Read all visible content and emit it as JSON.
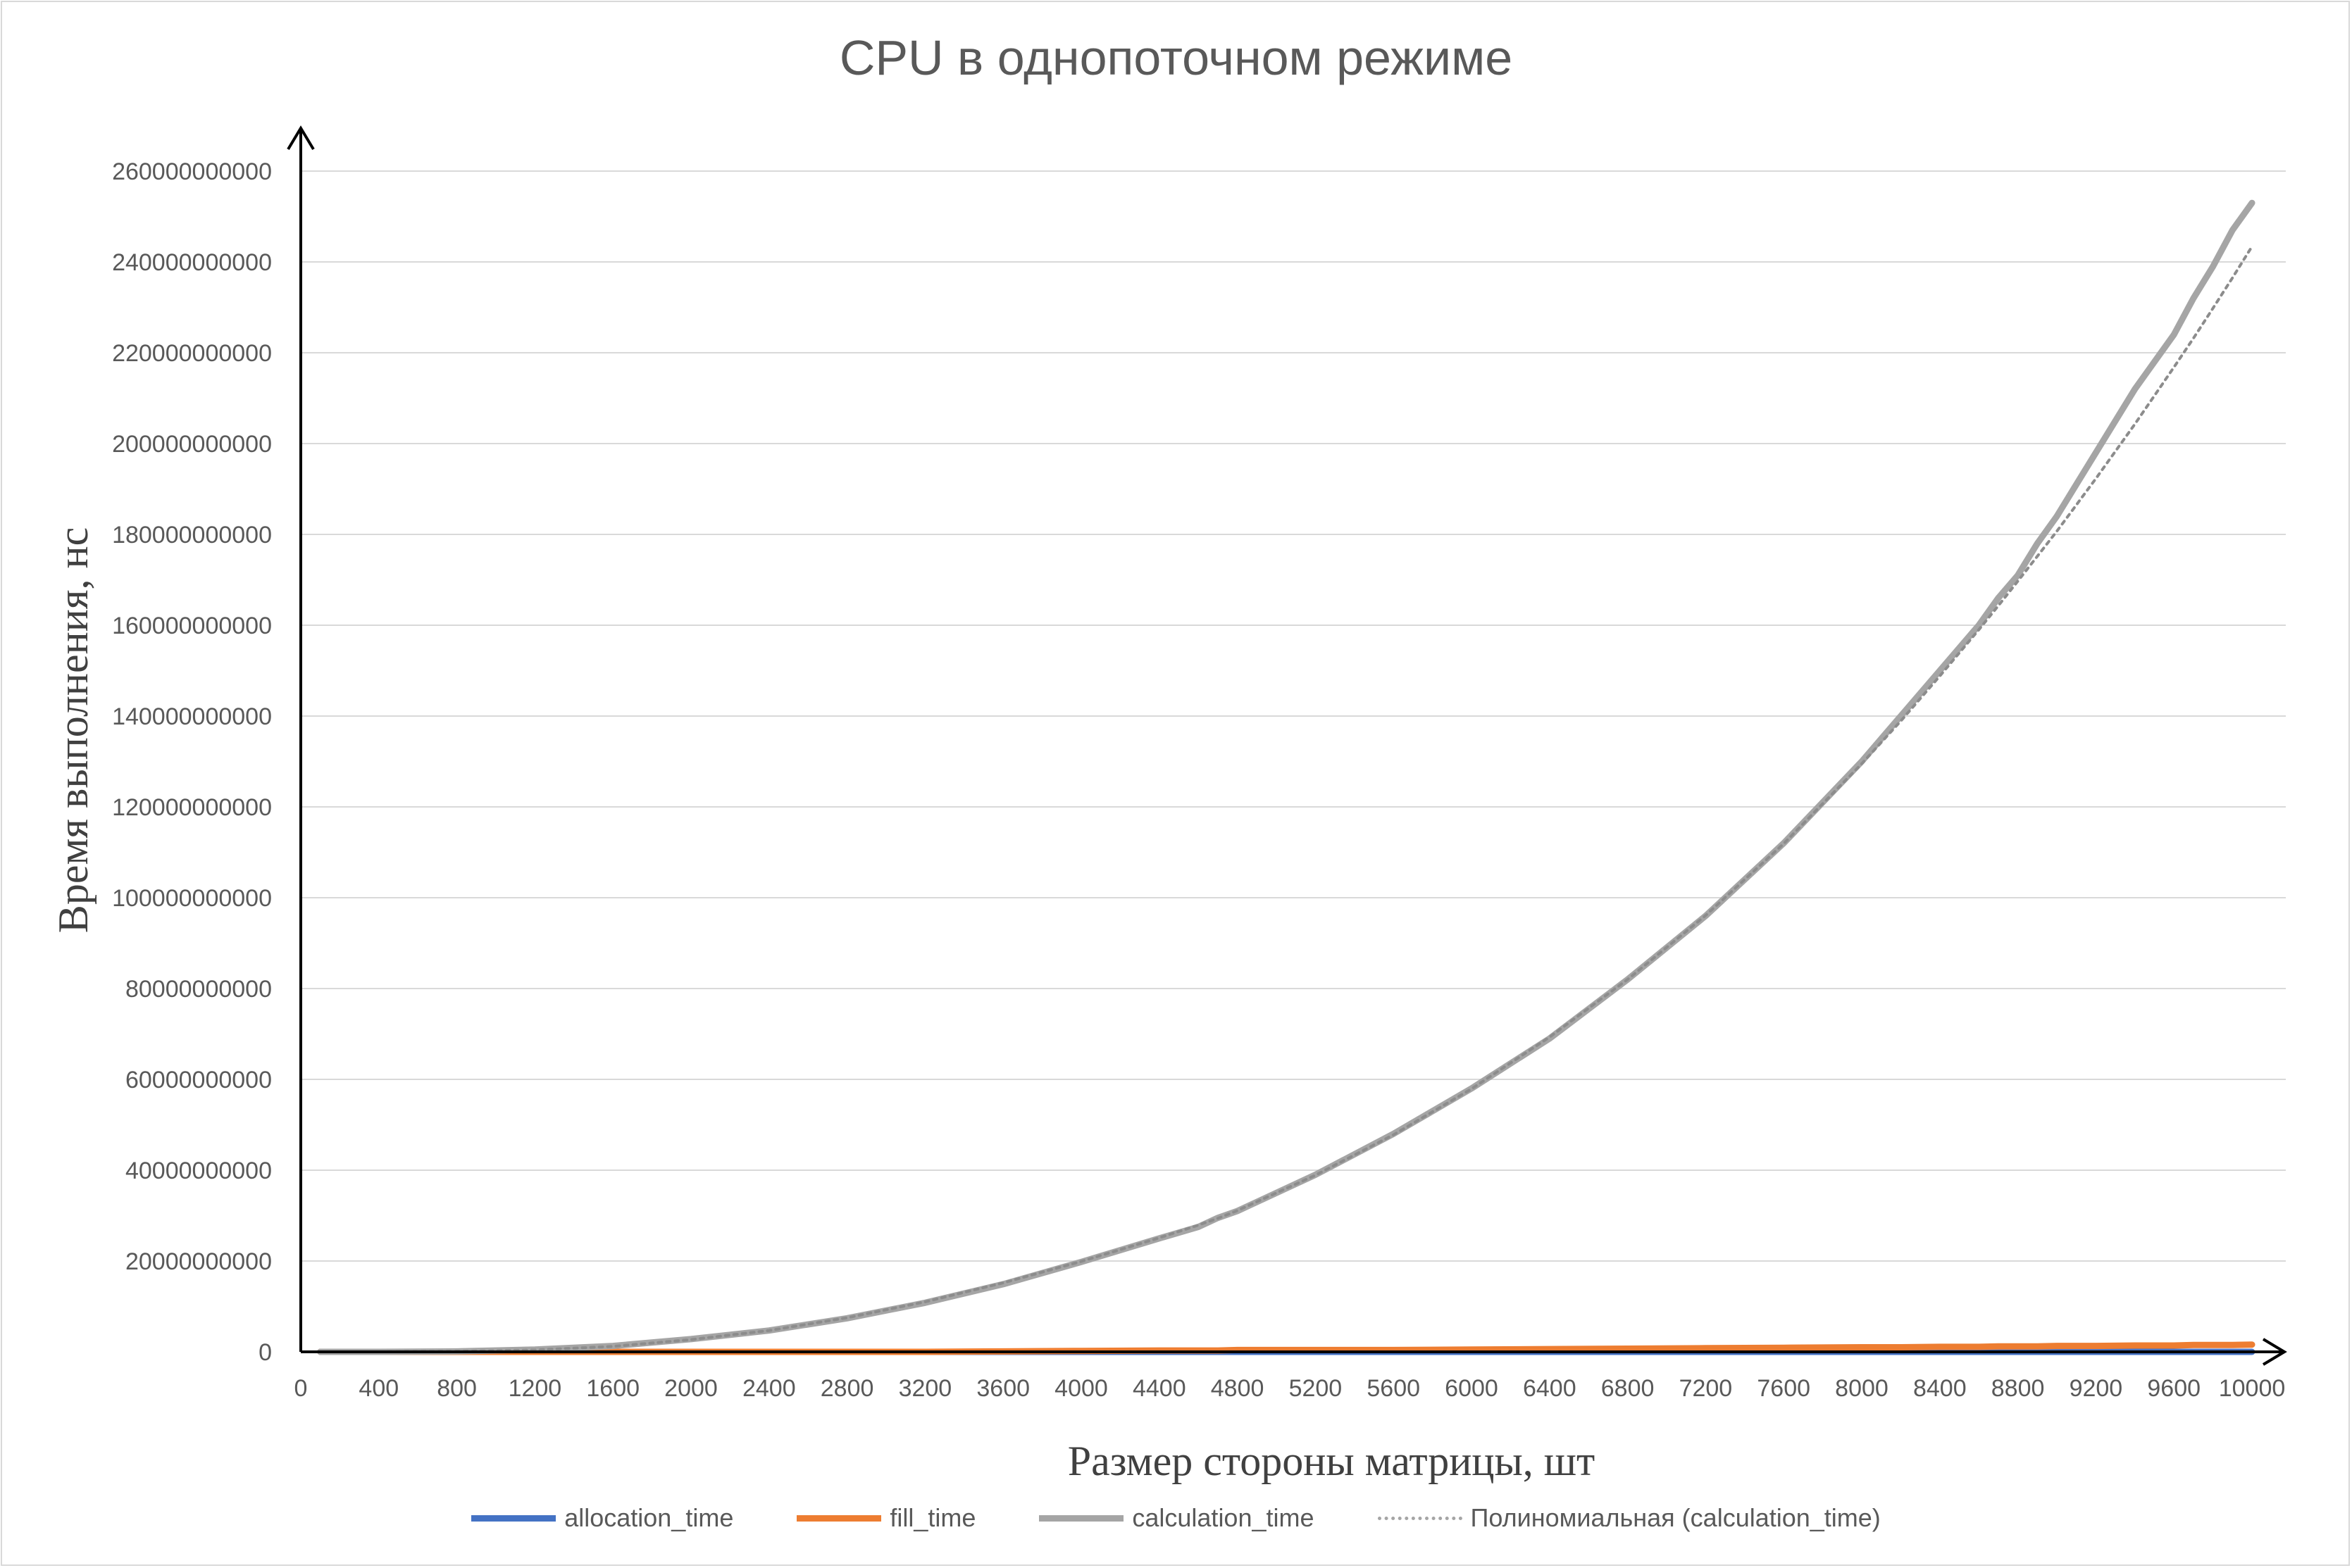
{
  "chart_data": {
    "type": "line",
    "title": "CPU в однопоточном режиме",
    "xlabel": "Размер стороны матрицы, шт",
    "ylabel": "Время выполнения, нс",
    "xlim": [
      0,
      10000
    ],
    "ylim": [
      0,
      260000000000
    ],
    "x_ticks": [
      "0",
      "400",
      "800",
      "1200",
      "1600",
      "2000",
      "2400",
      "2800",
      "3200",
      "3600",
      "4000",
      "4400",
      "4800",
      "5200",
      "5600",
      "6000",
      "6400",
      "6800",
      "7200",
      "7600",
      "8000",
      "8400",
      "8800",
      "9200",
      "9600",
      "10000"
    ],
    "y_ticks": [
      "0",
      "20000000000",
      "40000000000",
      "60000000000",
      "80000000000",
      "100000000000",
      "120000000000",
      "140000000000",
      "160000000000",
      "180000000000",
      "200000000000",
      "220000000000",
      "240000000000",
      "260000000000"
    ],
    "grid": "horizontal",
    "legend_position": "bottom",
    "x": [
      100,
      400,
      800,
      1200,
      1600,
      2000,
      2400,
      2800,
      3200,
      3600,
      4000,
      4400,
      4600,
      4700,
      4800,
      5200,
      5600,
      6000,
      6400,
      6800,
      7200,
      7600,
      8000,
      8200,
      8400,
      8600,
      8700,
      8800,
      8900,
      9000,
      9100,
      9200,
      9400,
      9600,
      9700,
      9800,
      9900,
      10000
    ],
    "series": [
      {
        "name": "allocation_time",
        "color": "#4472c4",
        "style": "solid",
        "values": [
          0,
          0,
          0,
          0,
          0,
          0,
          0,
          0,
          0,
          0,
          0,
          0,
          0,
          0,
          0,
          0,
          0,
          0,
          0,
          0,
          0,
          0,
          0,
          0,
          0,
          0,
          0,
          0,
          0,
          0,
          0,
          0,
          0,
          0,
          0,
          0,
          0,
          0
        ]
      },
      {
        "name": "fill_time",
        "color": "#ed7d31",
        "style": "solid",
        "values": [
          0,
          0,
          0,
          0,
          0,
          0,
          0,
          0,
          0,
          100000000,
          200000000,
          300000000,
          300000000,
          300000000,
          400000000,
          400000000,
          400000000,
          500000000,
          600000000,
          700000000,
          800000000,
          900000000,
          1000000000,
          1000000000,
          1100000000,
          1100000000,
          1200000000,
          1200000000,
          1200000000,
          1300000000,
          1300000000,
          1300000000,
          1400000000,
          1400000000,
          1500000000,
          1500000000,
          1500000000,
          1600000000
        ]
      },
      {
        "name": "calculation_time",
        "color": "#a5a5a5",
        "style": "solid",
        "values": [
          0,
          0,
          100000000,
          500000000,
          1300000000,
          2800000000,
          4700000000,
          7400000000,
          10800000000,
          14900000000,
          19800000000,
          25000000000,
          27500000000,
          29500000000,
          31000000000,
          39000000000,
          48000000000,
          58000000000,
          69000000000,
          82000000000,
          96000000000,
          112000000000,
          130000000000,
          140000000000,
          150000000000,
          160000000000,
          166000000000,
          171000000000,
          178000000000,
          184000000000,
          191000000000,
          198000000000,
          212000000000,
          224000000000,
          232000000000,
          239000000000,
          247000000000,
          253000000000
        ]
      },
      {
        "name": "Полиномиальная (calculation_time)",
        "color": "#a5a5a5",
        "style": "dotted",
        "values": [
          0,
          0,
          100000000,
          400000000,
          1200000000,
          2700000000,
          4700000000,
          7500000000,
          11000000000,
          15200000000,
          19900000000,
          25100000000,
          27900000000,
          29400000000,
          31100000000,
          38900000000,
          47800000000,
          57900000000,
          69300000000,
          82000000000,
          96100000000,
          111900000000,
          129500000000,
          138900000000,
          148800000000,
          159000000000,
          164300000000,
          169700000000,
          175200000000,
          180700000000,
          186500000000,
          192300000000,
          204300000000,
          216800000000,
          223200000000,
          229800000000,
          236500000000,
          243400000000
        ]
      }
    ]
  }
}
